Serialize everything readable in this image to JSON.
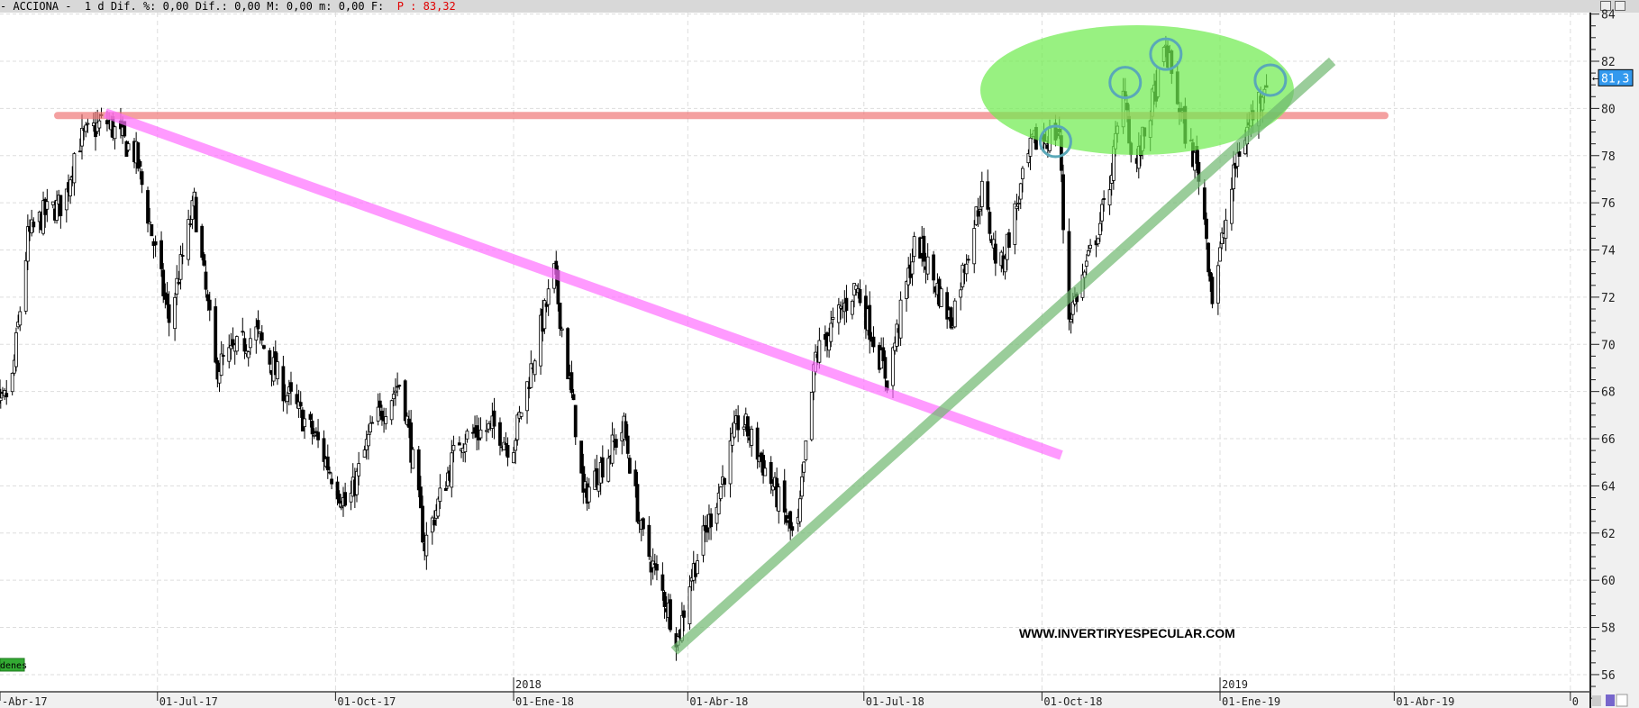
{
  "header": {
    "title": "- ACCIONA -  1 d",
    "stats": "Dif. %: 0,00 Dif.: 0,00 M: 0,00 m: 0,00 F: ",
    "price": "P : 83,32"
  },
  "window_buttons": [
    "minimize",
    "maximize"
  ],
  "legend_tag": "denes",
  "watermark": "WWW.INVERTIRYESPECULAR.COM",
  "chart_data": {
    "type": "candlestick",
    "title": "ACCIONA",
    "interval": "1 d",
    "ylim": [
      55,
      84
    ],
    "y_ticks": [
      56,
      58,
      60,
      62,
      64,
      66,
      68,
      70,
      72,
      74,
      76,
      78,
      80,
      82,
      84
    ],
    "x_ticks": [
      "-Abr-17",
      "01-Jul-17",
      "01-Oct-17",
      "01-Ene-18",
      "01-Abr-18",
      "01-Jul-18",
      "01-Oct-18",
      "01-Ene-19",
      "01-Abr-19",
      "0"
    ],
    "year_labels": [
      "2018",
      "2019"
    ],
    "last_price": "81,3",
    "grid": true,
    "approx_closes": [
      [
        "2017-04-03",
        69.5
      ],
      [
        "2017-04-10",
        67
      ],
      [
        "2017-04-17",
        68.5
      ],
      [
        "2017-04-25",
        74.5
      ],
      [
        "2017-05-03",
        75.5
      ],
      [
        "2017-05-14",
        76
      ],
      [
        "2017-05-20",
        78.5
      ],
      [
        "2017-06-04",
        79.5
      ],
      [
        "2017-06-20",
        78
      ],
      [
        "2017-07-07",
        71
      ],
      [
        "2017-07-20",
        76
      ],
      [
        "2017-07-31",
        69
      ],
      [
        "2017-08-21",
        70.5
      ],
      [
        "2017-09-05",
        68
      ],
      [
        "2017-09-21",
        66
      ],
      [
        "2017-10-07",
        63
      ],
      [
        "2017-10-20",
        66.5
      ],
      [
        "2017-11-04",
        68.5
      ],
      [
        "2017-11-16",
        61.5
      ],
      [
        "2017-12-04",
        66
      ],
      [
        "2017-12-23",
        66.5
      ],
      [
        "2017-12-31",
        65.5
      ],
      [
        "2018-01-13",
        70
      ],
      [
        "2018-01-22",
        73
      ],
      [
        "2018-02-03",
        66
      ],
      [
        "2018-02-06",
        63.5
      ],
      [
        "2018-02-27",
        66.5
      ],
      [
        "2018-03-08",
        62
      ],
      [
        "2018-03-21",
        59
      ],
      [
        "2018-03-27",
        57.5
      ],
      [
        "2018-04-02",
        60
      ],
      [
        "2018-04-18",
        64
      ],
      [
        "2018-04-28",
        67
      ],
      [
        "2018-05-15",
        64
      ],
      [
        "2018-05-27",
        61.5
      ],
      [
        "2018-06-06",
        69.5
      ],
      [
        "2018-06-27",
        72.5
      ],
      [
        "2018-07-13",
        68.5
      ],
      [
        "2018-07-28",
        74.5
      ],
      [
        "2018-08-15",
        71
      ],
      [
        "2018-08-31",
        76.5
      ],
      [
        "2018-09-09",
        73
      ],
      [
        "2018-09-26",
        78.5
      ],
      [
        "2018-10-10",
        79
      ],
      [
        "2018-10-14",
        71
      ],
      [
        "2018-10-23",
        73
      ],
      [
        "2018-11-03",
        76
      ],
      [
        "2018-11-13",
        81
      ],
      [
        "2018-11-17",
        77
      ],
      [
        "2018-12-04",
        82.5
      ],
      [
        "2018-12-14",
        79
      ],
      [
        "2018-12-22",
        77
      ],
      [
        "2018-12-28",
        72
      ],
      [
        "2019-01-10",
        78
      ],
      [
        "2019-01-25",
        81.3
      ]
    ],
    "annotations": [
      {
        "type": "horizontal-band",
        "level": 79.7,
        "from": "2017-05-20",
        "to": "2019-03-10",
        "color": "#f07878"
      },
      {
        "type": "trendline",
        "from": [
          "2017-06-04",
          79.8
        ],
        "to": [
          "2018-10-11",
          65.3
        ],
        "color": "#ff70ff"
      },
      {
        "type": "trendline",
        "from": [
          "2018-03-25",
          57
        ],
        "to": [
          "2019-02-28",
          82
        ],
        "color": "#70b870"
      },
      {
        "type": "ellipse",
        "color": "#70ec50"
      },
      {
        "type": "circles",
        "color": "#5aa8b8",
        "at": [
          [
            "2018-10-08",
            78.6
          ],
          [
            "2018-11-13",
            81.1
          ],
          [
            "2018-12-04",
            82.3
          ],
          [
            "2019-01-27",
            81.2
          ]
        ]
      }
    ]
  },
  "colors": {
    "titlebar": "#d8d8d8",
    "axis_bg": "#f0f0f0",
    "price_tag": "#3399ee",
    "tag_green": "#33aa33"
  }
}
